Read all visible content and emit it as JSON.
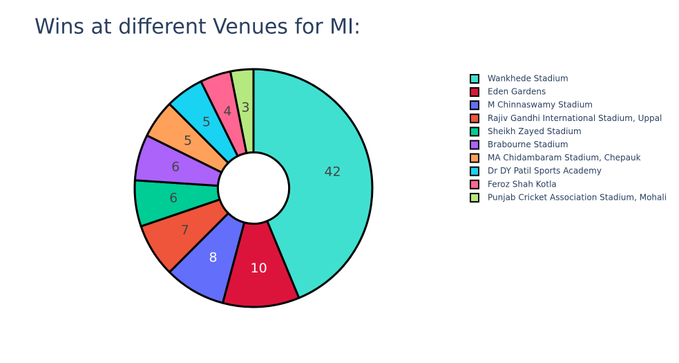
{
  "chart_data": {
    "type": "pie",
    "title": "Wins at different Venues for MI:",
    "categories": [
      "Wankhede Stadium",
      "Eden Gardens",
      "M Chinnaswamy Stadium",
      "Rajiv Gandhi International Stadium, Uppal",
      "Sheikh Zayed Stadium",
      "Brabourne Stadium",
      "MA Chidambaram Stadium, Chepauk",
      "Dr DY Patil Sports Academy",
      "Feroz Shah Kotla",
      "Punjab Cricket Association Stadium, Mohali"
    ],
    "values": [
      42,
      10,
      8,
      7,
      6,
      6,
      5,
      5,
      4,
      3
    ],
    "colors": [
      "#40e0d0",
      "#dc143c",
      "#636efa",
      "#ef553b",
      "#00cc96",
      "#ab63fa",
      "#ffa15a",
      "#19d3f3",
      "#ff6692",
      "#b6e880"
    ],
    "hole": 0.3,
    "legend": "right"
  }
}
